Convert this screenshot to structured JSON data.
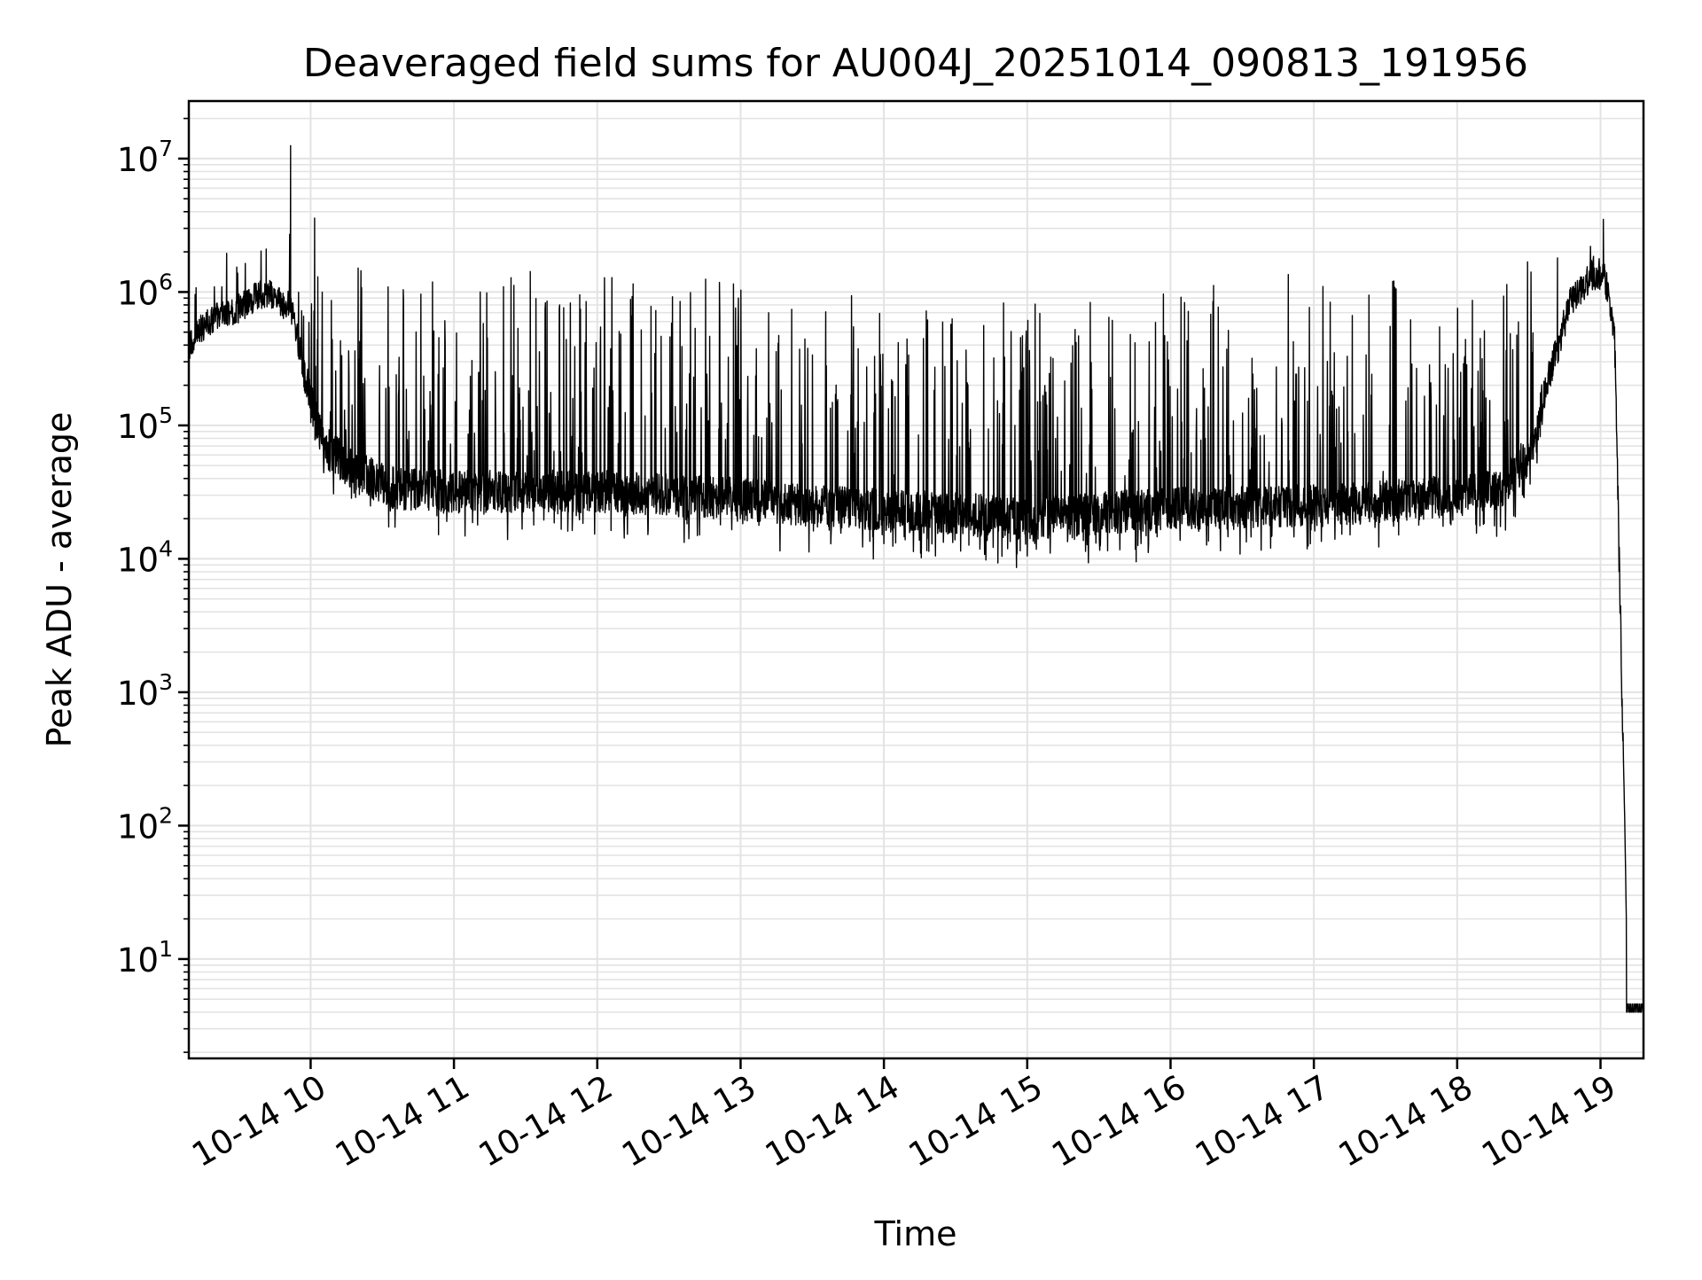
{
  "chart_data": {
    "type": "line",
    "title": "Deaveraged field sums for AU004J_20251014_090813_191956",
    "xlabel": "Time",
    "ylabel": "Peak ADU - average",
    "yscale": "log",
    "ylim": [
      1.8,
      27000000
    ],
    "xlim_hours": [
      9.15,
      19.3
    ],
    "grid": true,
    "line_color": "#000000",
    "grid_color": "#e3e3e3",
    "x_ticks": [
      {
        "value": 10,
        "label": "10-14 10"
      },
      {
        "value": 11,
        "label": "10-14 11"
      },
      {
        "value": 12,
        "label": "10-14 12"
      },
      {
        "value": 13,
        "label": "10-14 13"
      },
      {
        "value": 14,
        "label": "10-14 14"
      },
      {
        "value": 15,
        "label": "10-14 15"
      },
      {
        "value": 16,
        "label": "10-14 16"
      },
      {
        "value": 17,
        "label": "10-14 17"
      },
      {
        "value": 18,
        "label": "10-14 18"
      },
      {
        "value": 19,
        "label": "10-14 19"
      }
    ],
    "y_ticks": [
      {
        "exp": 1,
        "base": "10",
        "power": "1"
      },
      {
        "exp": 2,
        "base": "10",
        "power": "2"
      },
      {
        "exp": 3,
        "base": "10",
        "power": "3"
      },
      {
        "exp": 4,
        "base": "10",
        "power": "4"
      },
      {
        "exp": 5,
        "base": "10",
        "power": "5"
      },
      {
        "exp": 6,
        "base": "10",
        "power": "6"
      },
      {
        "exp": 7,
        "base": "10",
        "power": "7"
      }
    ],
    "series": [
      {
        "name": "deaveraged field sum",
        "x_hours": [
          9.15,
          9.25,
          9.35,
          9.5,
          9.6,
          9.7,
          9.75,
          9.82,
          9.86,
          9.9,
          10.0,
          10.1,
          10.3,
          10.6,
          11.0,
          11.5,
          12.0,
          12.5,
          13.0,
          13.5,
          14.0,
          14.5,
          15.0,
          15.5,
          16.0,
          16.5,
          17.0,
          17.5,
          18.0,
          18.3,
          18.5,
          18.65,
          18.8,
          18.95,
          19.02,
          19.05,
          19.1,
          19.13,
          19.17,
          19.19,
          19.3
        ],
        "baseline": [
          400000,
          550000,
          650000,
          750000,
          900000,
          1000000,
          900000,
          800000,
          800000,
          500000,
          150000,
          70000,
          45000,
          33000,
          32000,
          32000,
          32000,
          30000,
          28000,
          25000,
          23000,
          22000,
          20000,
          22000,
          24000,
          24000,
          25000,
          27000,
          30000,
          33000,
          60000,
          250000,
          900000,
          1400000,
          1300000,
          1000000,
          400000,
          10000,
          100,
          4,
          4
        ],
        "peaks": [
          {
            "x": 9.86,
            "y": 12500000
          },
          {
            "x": 9.69,
            "y": 2100000
          },
          {
            "x": 10.05,
            "y": 1300000
          },
          {
            "x": 12.05,
            "y": 1280000
          },
          {
            "x": 12.25,
            "y": 1150000
          },
          {
            "x": 12.95,
            "y": 1150000
          },
          {
            "x": 17.55,
            "y": 1200000
          },
          {
            "x": 18.7,
            "y": 1800000
          },
          {
            "x": 18.93,
            "y": 2200000
          },
          {
            "x": 19.02,
            "y": 3500000
          }
        ],
        "dips": [
          {
            "x": 15.76,
            "y": 9500
          },
          {
            "x": 14.0,
            "y": 13000
          },
          {
            "x": 15.0,
            "y": 10500
          },
          {
            "x": 14.3,
            "y": 11500
          }
        ]
      }
    ]
  }
}
